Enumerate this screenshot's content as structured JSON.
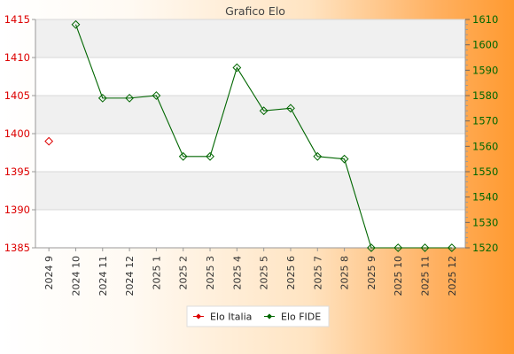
{
  "chart_data": {
    "type": "line",
    "title": "Grafico Elo",
    "categories": [
      "2024 9",
      "2024 10",
      "2024 11",
      "2024 12",
      "2025 1",
      "2025 2",
      "2025 3",
      "2025 4",
      "2025 5",
      "2025 6",
      "2025 7",
      "2025 8",
      "2025 9",
      "2025 10",
      "2025 11",
      "2025 12"
    ],
    "left_axis": {
      "min": 1385,
      "max": 1415,
      "ticks": [
        1385,
        1390,
        1395,
        1400,
        1405,
        1410,
        1415
      ],
      "color": "#dd0000"
    },
    "right_axis": {
      "min": 1520,
      "max": 1610,
      "ticks": [
        1520,
        1530,
        1540,
        1550,
        1560,
        1570,
        1580,
        1590,
        1600,
        1610
      ],
      "color": "#006600"
    },
    "series": [
      {
        "name": "Elo Italia",
        "axis": "left",
        "color": "#dd0000",
        "values": [
          1399,
          null,
          null,
          null,
          null,
          null,
          null,
          null,
          null,
          null,
          null,
          null,
          null,
          null,
          null,
          null
        ]
      },
      {
        "name": "Elo FIDE",
        "axis": "right",
        "color": "#006600",
        "values": [
          null,
          1608,
          1579,
          1579,
          1580,
          1556,
          1556,
          1591,
          1574,
          1575,
          1556,
          1555,
          1520,
          1520,
          1520,
          1520
        ]
      }
    ],
    "grid": true,
    "legend_position": "bottom"
  }
}
